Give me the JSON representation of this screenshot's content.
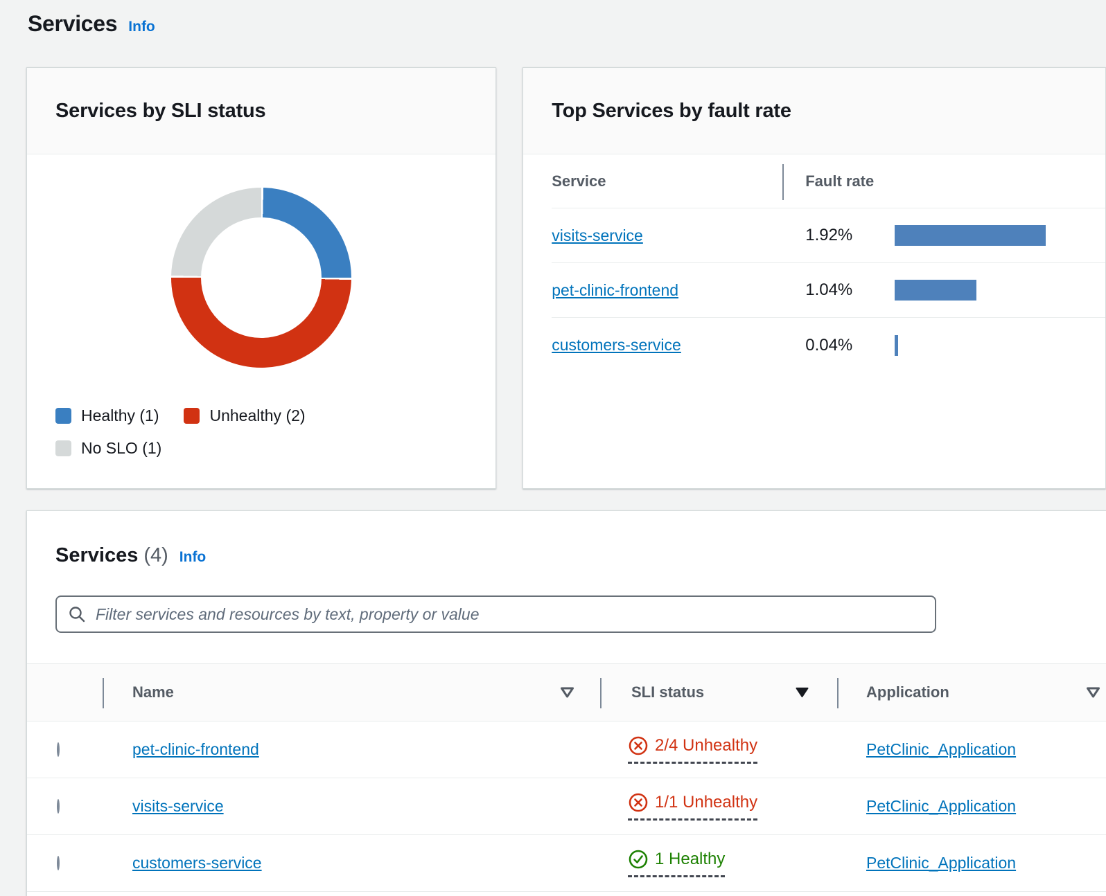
{
  "page": {
    "title": "Services",
    "info_label": "Info"
  },
  "colors": {
    "accent_link": "#0972d3",
    "table_link": "#0073bb",
    "healthy_blue": "#3a7fc1",
    "unhealthy_red": "#d13212",
    "no_slo_gray": "#d5d9d9",
    "bar_blue": "#4e81bb",
    "healthy_green": "#1d8102"
  },
  "sli_card": {
    "title": "Services by SLI status",
    "legend": [
      {
        "label": "Healthy (1)",
        "color": "#3a7fc1"
      },
      {
        "label": "Unhealthy (2)",
        "color": "#d13212"
      },
      {
        "label": "No SLO (1)",
        "color": "#d5d9d9"
      }
    ]
  },
  "fault_card": {
    "title": "Top Services by fault rate",
    "columns": {
      "service": "Service",
      "fault_rate": "Fault rate"
    },
    "rows": [
      {
        "service": "visits-service",
        "rate_label": "1.92%",
        "rate": 1.92
      },
      {
        "service": "pet-clinic-frontend",
        "rate_label": "1.04%",
        "rate": 1.04
      },
      {
        "service": "customers-service",
        "rate_label": "0.04%",
        "rate": 0.04
      }
    ]
  },
  "services_table": {
    "title": "Services",
    "count": "(4)",
    "info_label": "Info",
    "filter_placeholder": "Filter services and resources by text, property or value",
    "columns": {
      "name": "Name",
      "sli_status": "SLI status",
      "application": "Application"
    },
    "sort": {
      "name": "none",
      "sli_status": "desc",
      "application": "none"
    },
    "rows": [
      {
        "name": "pet-clinic-frontend",
        "status_text": "2/4 Unhealthy",
        "status_type": "unhealthy",
        "application": "PetClinic_Application"
      },
      {
        "name": "visits-service",
        "status_text": "1/1 Unhealthy",
        "status_type": "unhealthy",
        "application": "PetClinic_Application"
      },
      {
        "name": "customers-service",
        "status_text": "1 Healthy",
        "status_type": "healthy",
        "application": "PetClinic_Application"
      }
    ]
  },
  "chart_data": [
    {
      "type": "pie",
      "donut": true,
      "title": "Services by SLI status",
      "labels": [
        "Healthy",
        "Unhealthy",
        "No SLO"
      ],
      "values": [
        1,
        2,
        1
      ],
      "colors": [
        "#3a7fc1",
        "#d13212",
        "#d5d9d9"
      ],
      "legend_position": "bottom",
      "start_angle_deg": 0,
      "order": "clockwise"
    },
    {
      "type": "bar",
      "orientation": "horizontal",
      "title": "Top Services by fault rate",
      "categories": [
        "visits-service",
        "pet-clinic-frontend",
        "customers-service"
      ],
      "values": [
        1.92,
        1.04,
        0.04
      ],
      "value_labels": [
        "1.92%",
        "1.04%",
        "0.04%"
      ],
      "xlabel": "Fault rate",
      "xlim": [
        0,
        2.2
      ],
      "color": "#4e81bb"
    }
  ]
}
